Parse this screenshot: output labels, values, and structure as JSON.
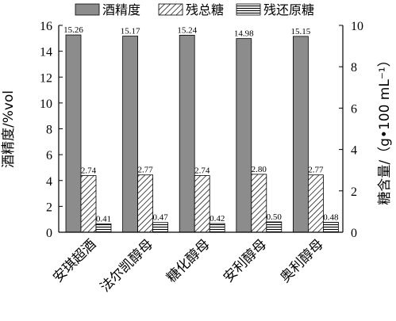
{
  "chart_data": {
    "type": "bar",
    "categories": [
      "安琪超酒",
      "法尔凯醇母",
      "糖化醇母",
      "安利醇母",
      "奥利醇母"
    ],
    "series": [
      {
        "name": "酒精度",
        "axis": "left",
        "values": [
          15.26,
          15.17,
          15.24,
          14.98,
          15.15
        ],
        "labels": [
          "15.26",
          "15.17",
          "15.24",
          "14.98",
          "15.15"
        ],
        "fill": "solid-gray"
      },
      {
        "name": "残总糖",
        "axis": "right",
        "values": [
          2.74,
          2.77,
          2.74,
          2.8,
          2.77
        ],
        "labels": [
          "2.74",
          "2.77",
          "2.74",
          "2.80",
          "2.77"
        ],
        "fill": "diagonal-hatch"
      },
      {
        "name": "残还原糖",
        "axis": "right",
        "values": [
          0.41,
          0.47,
          0.42,
          0.5,
          0.48
        ],
        "labels": [
          "0.41",
          "0.47",
          "0.42",
          "0.50",
          "0.48"
        ],
        "fill": "horizontal-hatch"
      }
    ],
    "ylabel": "酒精度/%vol",
    "y2label": "糖含量/（g•100 mL⁻¹）",
    "ylim": [
      0,
      16
    ],
    "y2lim": [
      0,
      10
    ],
    "yticks": [
      0,
      2,
      4,
      6,
      8,
      10,
      12,
      14,
      16
    ],
    "y2ticks": [
      0,
      2,
      4,
      6,
      8,
      10
    ],
    "legend_position": "top",
    "grid": false,
    "colors": {
      "bar_fill": "#8c8c8c",
      "bar_stroke": "#000000",
      "hatch": "#000000"
    }
  }
}
